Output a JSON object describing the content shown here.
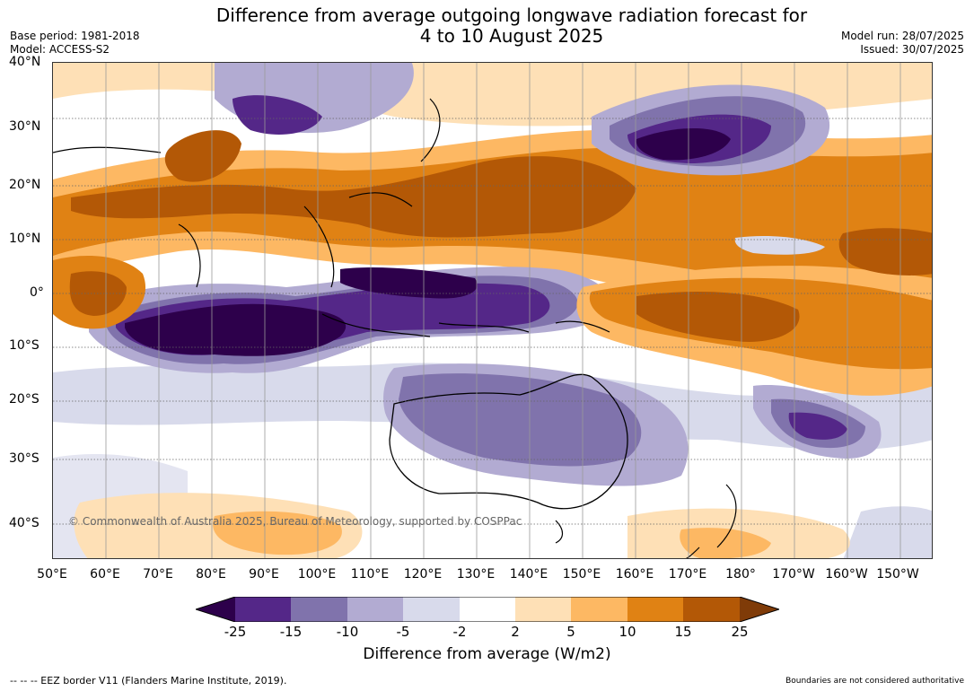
{
  "title": {
    "line1": "Difference from average outgoing longwave radiation forecast for",
    "line2": "4 to 10 August 2025"
  },
  "meta_left": {
    "base_period": "Base period: 1981-2018",
    "model": "Model: ACCESS-S2"
  },
  "meta_right": {
    "model_run": "Model run: 28/07/2025",
    "issued": "Issued: 30/07/2025"
  },
  "map": {
    "region": "Indian Ocean, Maritime Continent, Australia and western Pacific",
    "lat_labels": [
      "40°N",
      "30°N",
      "20°N",
      "10°N",
      "0°",
      "10°S",
      "20°S",
      "30°S",
      "40°S"
    ],
    "lon_labels": [
      "50°E",
      "60°E",
      "70°E",
      "80°E",
      "90°E",
      "100°E",
      "110°E",
      "120°E",
      "130°E",
      "140°E",
      "150°E",
      "160°E",
      "170°E",
      "180°",
      "170°W",
      "160°W",
      "150°W"
    ],
    "copyright": "© Commonwealth of Australia 2025, Bureau of Meteorology, supported by COSPPac"
  },
  "colorbar": {
    "levels": [
      "-25",
      "-15",
      "-10",
      "-5",
      "-2",
      "2",
      "5",
      "10",
      "15",
      "25"
    ],
    "colors": [
      "#2d004b",
      "#542788",
      "#8073ac",
      "#b2abd2",
      "#d8daeb",
      "#ffffff",
      "#fee0b6",
      "#fdb863",
      "#e08214",
      "#b35806",
      "#7f3b08"
    ],
    "label": "Difference from average (W/m2)"
  },
  "footer": {
    "left": "--  --  -- EEZ border V11 (Flanders Marine Institute, 2019).",
    "right": "Boundaries are not considered authoritative"
  }
}
